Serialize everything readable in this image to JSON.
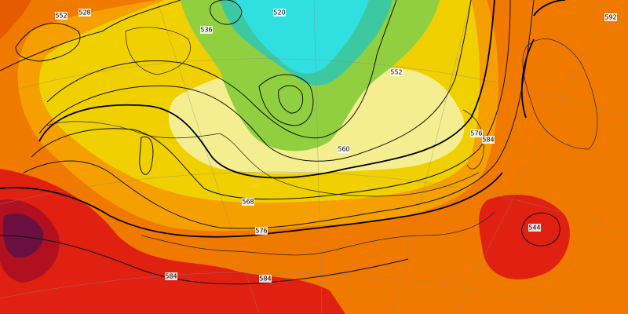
{
  "map": {
    "contour_labels": [
      552,
      528,
      520,
      536,
      552,
      560,
      568,
      576,
      584,
      584,
      576,
      584,
      544,
      592
    ]
  }
}
